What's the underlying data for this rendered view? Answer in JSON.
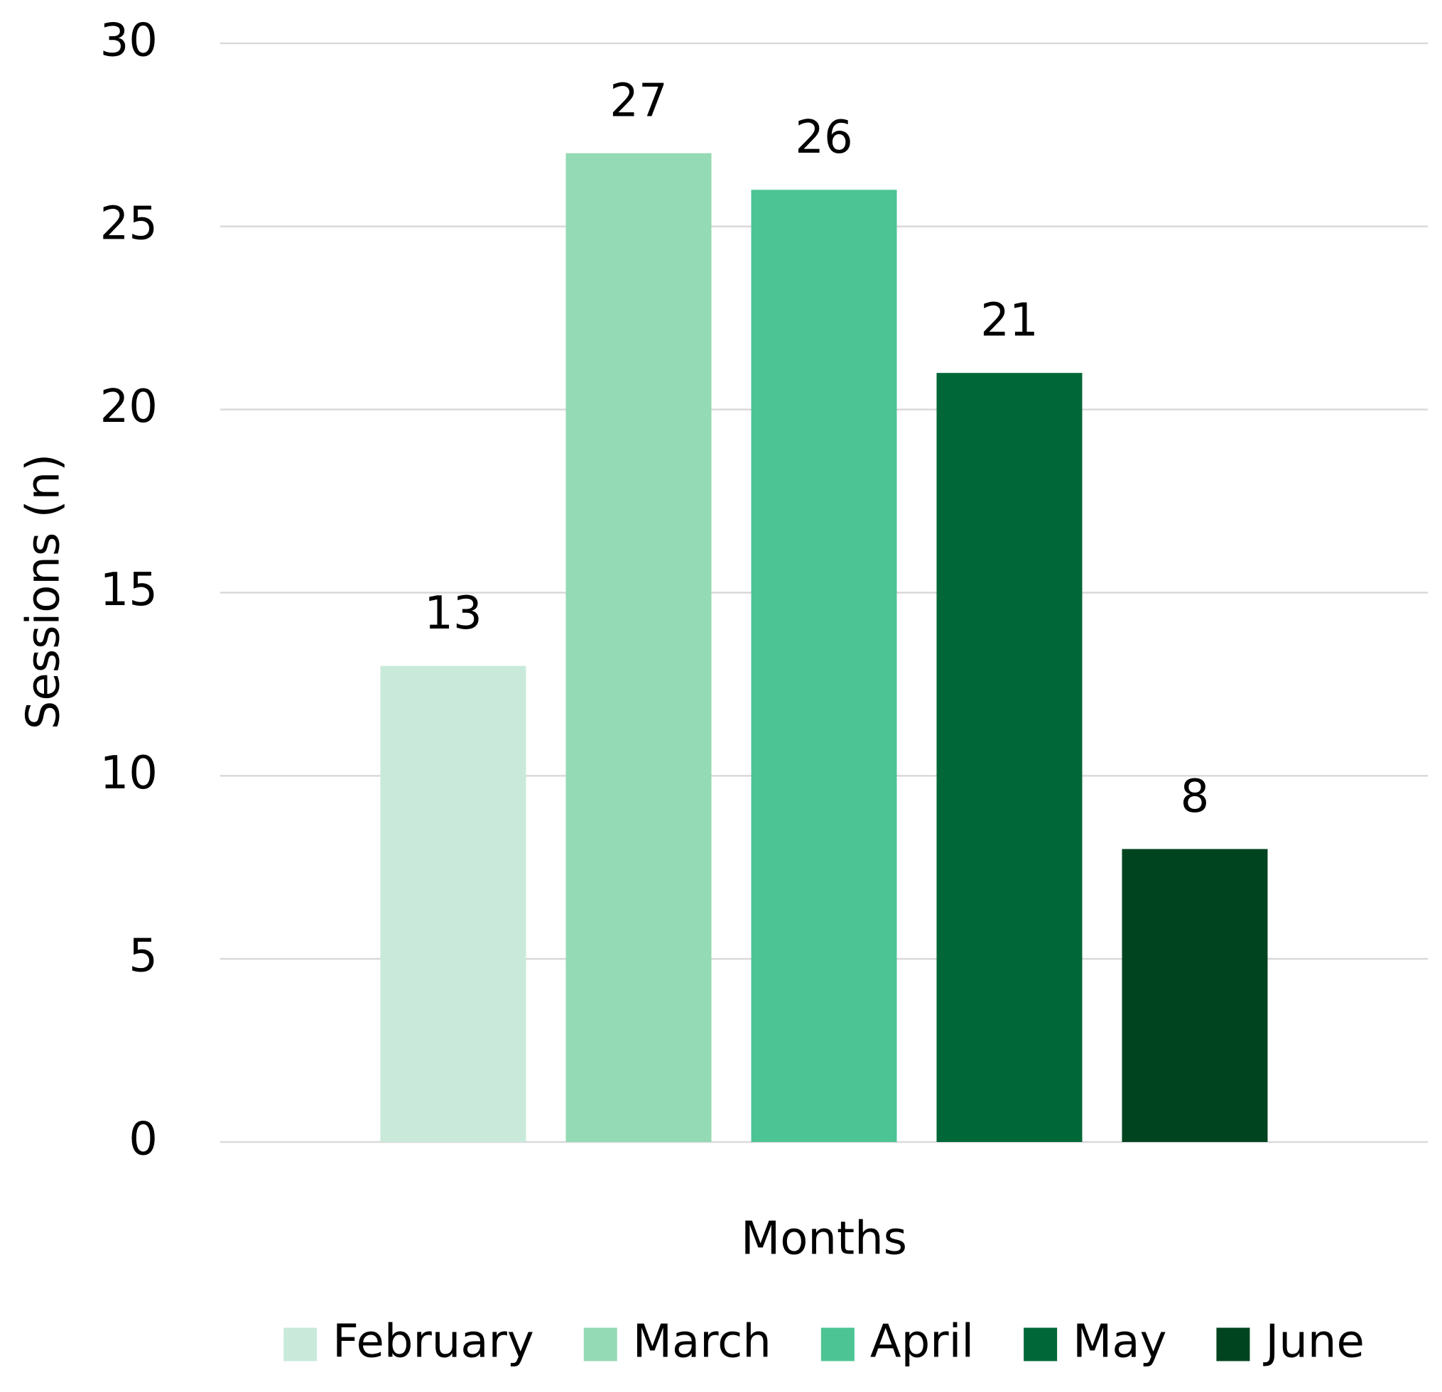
{
  "chart_data": {
    "type": "bar",
    "categories": [
      null
    ],
    "series": [
      {
        "name": "February",
        "color": "#c9eadb",
        "values": [
          13
        ]
      },
      {
        "name": "March",
        "color": "#94dab4",
        "values": [
          27
        ]
      },
      {
        "name": "April",
        "color": "#4dc493",
        "values": [
          26
        ]
      },
      {
        "name": "May",
        "color": "#006838",
        "values": [
          21
        ]
      },
      {
        "name": "June",
        "color": "#00441f",
        "values": [
          8
        ]
      }
    ],
    "x_label": "Months",
    "y_label": "Sessions (n)",
    "ylim": [
      0,
      30
    ],
    "yticks": [
      0,
      5,
      10,
      15,
      20,
      25,
      30
    ],
    "grid": true,
    "legend": "bottom",
    "data_labels": true
  }
}
